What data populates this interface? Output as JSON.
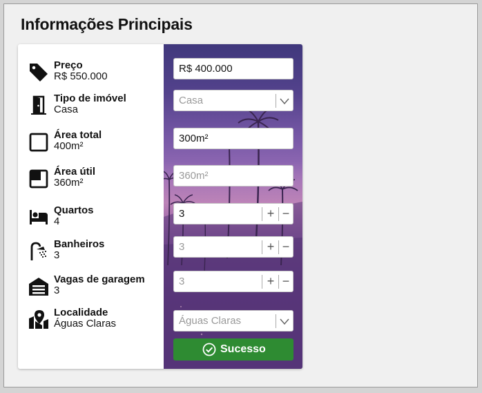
{
  "title": "Informações Principais",
  "properties": [
    {
      "label": "Preço",
      "value": "R$ 550.000",
      "icon": "price-tag-icon"
    },
    {
      "label": "Tipo de imóvel",
      "value": "Casa",
      "icon": "door-icon"
    },
    {
      "label": "Área total",
      "value": "400m²",
      "icon": "square-outline-icon"
    },
    {
      "label": "Área útil",
      "value": "360m²",
      "icon": "square-corner-icon"
    },
    {
      "label": "Quartos",
      "value": "4",
      "icon": "bed-icon"
    },
    {
      "label": "Banheiros",
      "value": "3",
      "icon": "shower-icon"
    },
    {
      "label": "Vagas de garagem",
      "value": "3",
      "icon": "garage-icon"
    },
    {
      "label": "Localidade",
      "value": "Águas Claras",
      "icon": "map-pin-icon"
    }
  ],
  "form": {
    "price_value": "R$ 400.000",
    "type_placeholder": "Casa",
    "total_area_value": "300m²",
    "useful_area_placeholder": "360m²",
    "rooms_value": "3",
    "bathrooms_placeholder": "3",
    "garage_placeholder": "3",
    "location_placeholder": "Águas Claras",
    "plus_symbol": "+",
    "minus_symbol": "−",
    "submit_label": "Sucesso"
  },
  "colors": {
    "success": "#2e8b32",
    "panel_top": "#40387c",
    "panel_bottom": "#5e3680"
  }
}
